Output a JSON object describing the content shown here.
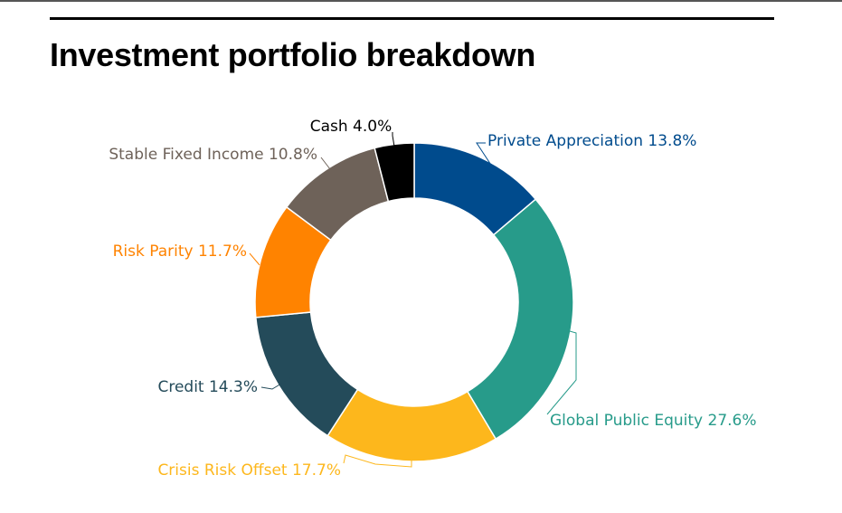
{
  "chart_data": {
    "type": "pie",
    "variant": "donut",
    "title": "Investment portfolio breakdown",
    "slices": [
      {
        "label": "Private Appreciation 13.8%",
        "name": "Private Appreciation",
        "value": 13.8,
        "color": "#004B8D"
      },
      {
        "label": "Global Public Equity 27.6%",
        "name": "Global Public Equity",
        "value": 27.6,
        "color": "#279B8A"
      },
      {
        "label": "Crisis Risk Offset 17.7%",
        "name": "Crisis Risk Offset",
        "value": 17.7,
        "color": "#FDB71C"
      },
      {
        "label": "Credit 14.3%",
        "name": "Credit",
        "value": 14.3,
        "color": "#244B5A"
      },
      {
        "label": "Risk Parity 11.7%",
        "name": "Risk Parity",
        "value": 11.7,
        "color": "#FF8300"
      },
      {
        "label": "Stable Fixed Income 10.8%",
        "name": "Stable Fixed Income",
        "value": 10.8,
        "color": "#6E6259"
      },
      {
        "label": "Cash 4.0%",
        "name": "Cash",
        "value": 4.0,
        "color": "#000000"
      }
    ],
    "legend": "none",
    "label_placement": "outside-with-connectors"
  }
}
